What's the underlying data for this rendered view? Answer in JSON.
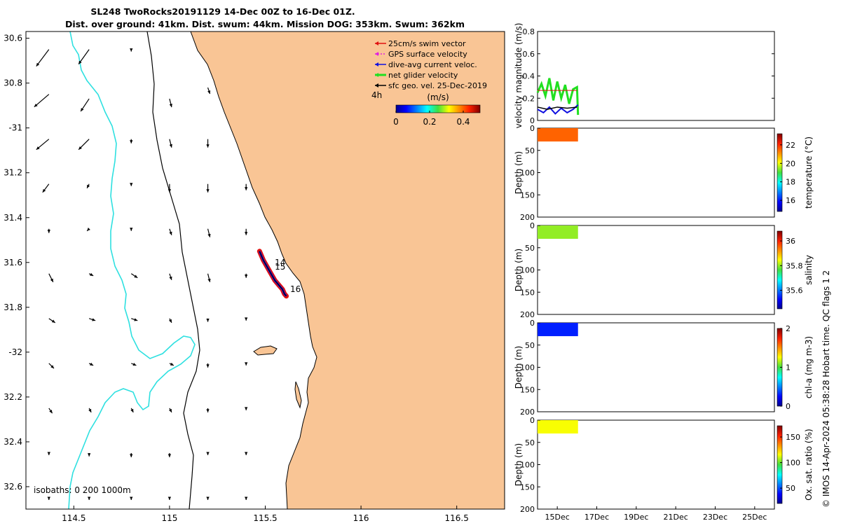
{
  "title_line1": "SL248 TwoRocks20191129 14-Dec 00Z to 16-Dec 01Z.",
  "title_line2": "Dist. over ground: 41km. Dist. swum: 44km. Mission DOG: 353km. Swum: 362km",
  "footer_text": "© IMOS 14-Apr-2024 05:38:28 Hobart time. QC flags 1  2",
  "colors": {
    "land": "#f9c595",
    "isobath_0": "#000000",
    "isobath_200": "#000000",
    "isobath_1000": "#2ee0e0",
    "swim_vector": "#e01010",
    "gps_velocity": "#e020e0",
    "dive_avg": "#1010e0",
    "net_glider": "#20e020",
    "sfc_geo": "#000000"
  },
  "chart_data": [
    {
      "type": "map",
      "xlim": [
        114.25,
        116.75
      ],
      "ylim": [
        -32.7,
        -30.57
      ],
      "x_ticks": [
        114.5,
        115,
        115.5,
        116,
        116.5
      ],
      "x_tick_labels": [
        "114.5",
        "115",
        "115.5",
        "116",
        "116.5"
      ],
      "y_ticks": [
        -30.6,
        -30.8,
        -31,
        -31.2,
        -31.4,
        -31.6,
        -31.8,
        -32,
        -32.2,
        -32.4,
        -32.6
      ],
      "y_tick_labels": [
        "30.6",
        "30.8",
        "-31",
        "31.2",
        "31.4",
        "31.6",
        "31.8",
        "-32",
        "32.2",
        "32.4",
        "32.6"
      ],
      "legend": {
        "placement": "top-right",
        "entries": [
          "25cm/s swim vector",
          "GPS surface velocity",
          "dive-avg current veloc.",
          "net glider velocity",
          "sfc geo. vel. 25-Dec-2019"
        ]
      },
      "colorbar": {
        "label": "(m/s)",
        "ticks": [
          0,
          0.2,
          0.4
        ],
        "tick_labels": [
          "0",
          "0.2",
          "0.4"
        ],
        "range": [
          0,
          0.5
        ]
      },
      "time_label": "4h",
      "isobath_label": "isobaths: 0  200  1000m",
      "track": {
        "lon": [
          115.47,
          115.49,
          115.51,
          115.53,
          115.55,
          115.57,
          115.59,
          115.6,
          115.61
        ],
        "lat": [
          -31.55,
          -31.59,
          -31.62,
          -31.65,
          -31.68,
          -31.7,
          -31.72,
          -31.74,
          -31.75
        ]
      },
      "track_labels": [
        {
          "text": "14",
          "lon": 115.55,
          "lat": -31.6
        },
        {
          "text": "15",
          "lon": 115.55,
          "lat": -31.62
        },
        {
          "text": "16",
          "lon": 115.63,
          "lat": -31.72
        }
      ],
      "current_vectors": [
        {
          "lon": 114.37,
          "lat": -30.65,
          "u": -0.3,
          "v": -0.4
        },
        {
          "lon": 114.58,
          "lat": -30.65,
          "u": -0.25,
          "v": -0.35
        },
        {
          "lon": 114.37,
          "lat": -30.85,
          "u": -0.35,
          "v": -0.3
        },
        {
          "lon": 114.58,
          "lat": -30.87,
          "u": -0.2,
          "v": -0.3
        },
        {
          "lon": 114.37,
          "lat": -31.05,
          "u": -0.3,
          "v": -0.25
        },
        {
          "lon": 114.58,
          "lat": -31.05,
          "u": -0.25,
          "v": -0.25
        },
        {
          "lon": 114.37,
          "lat": -31.25,
          "u": -0.15,
          "v": -0.2
        },
        {
          "lon": 114.58,
          "lat": -31.25,
          "u": -0.05,
          "v": -0.1
        },
        {
          "lon": 114.37,
          "lat": -31.45,
          "u": 0.0,
          "v": -0.1
        },
        {
          "lon": 114.58,
          "lat": -31.45,
          "u": -0.05,
          "v": -0.05
        },
        {
          "lon": 114.37,
          "lat": -31.65,
          "u": 0.1,
          "v": -0.2
        },
        {
          "lon": 114.58,
          "lat": -31.65,
          "u": 0.1,
          "v": -0.05
        },
        {
          "lon": 114.37,
          "lat": -31.85,
          "u": 0.15,
          "v": -0.1
        },
        {
          "lon": 114.58,
          "lat": -31.85,
          "u": 0.15,
          "v": -0.05
        },
        {
          "lon": 114.37,
          "lat": -32.05,
          "u": 0.12,
          "v": -0.12
        },
        {
          "lon": 114.58,
          "lat": -32.05,
          "u": 0.1,
          "v": -0.05
        },
        {
          "lon": 114.37,
          "lat": -32.25,
          "u": 0.08,
          "v": -0.12
        },
        {
          "lon": 114.58,
          "lat": -32.25,
          "u": 0.05,
          "v": -0.1
        },
        {
          "lon": 114.37,
          "lat": -32.45,
          "u": 0.0,
          "v": -0.05
        },
        {
          "lon": 114.58,
          "lat": -32.45,
          "u": 0.0,
          "v": -0.08
        },
        {
          "lon": 114.37,
          "lat": -32.65,
          "u": 0.0,
          "v": -0.05
        },
        {
          "lon": 114.58,
          "lat": -32.65,
          "u": 0.0,
          "v": -0.05
        },
        {
          "lon": 114.8,
          "lat": -30.65,
          "u": 0.0,
          "v": -0.05
        },
        {
          "lon": 115.0,
          "lat": -30.87,
          "u": 0.05,
          "v": -0.2
        },
        {
          "lon": 114.8,
          "lat": -31.05,
          "u": 0.0,
          "v": -0.1
        },
        {
          "lon": 115.0,
          "lat": -31.05,
          "u": 0.05,
          "v": -0.2
        },
        {
          "lon": 114.8,
          "lat": -31.25,
          "u": 0.0,
          "v": -0.05
        },
        {
          "lon": 115.0,
          "lat": -31.25,
          "u": 0.0,
          "v": -0.2
        },
        {
          "lon": 114.8,
          "lat": -31.45,
          "u": 0.0,
          "v": -0.05
        },
        {
          "lon": 115.0,
          "lat": -31.45,
          "u": 0.05,
          "v": -0.15
        },
        {
          "lon": 114.8,
          "lat": -31.65,
          "u": 0.15,
          "v": -0.1
        },
        {
          "lon": 115.0,
          "lat": -31.65,
          "u": 0.05,
          "v": -0.15
        },
        {
          "lon": 114.8,
          "lat": -31.85,
          "u": 0.15,
          "v": -0.05
        },
        {
          "lon": 115.0,
          "lat": -31.85,
          "u": 0.05,
          "v": -0.1
        },
        {
          "lon": 114.8,
          "lat": -32.05,
          "u": 0.12,
          "v": -0.05
        },
        {
          "lon": 115.0,
          "lat": -32.05,
          "u": 0.1,
          "v": -0.05
        },
        {
          "lon": 114.8,
          "lat": -32.25,
          "u": 0.05,
          "v": -0.1
        },
        {
          "lon": 115.0,
          "lat": -32.25,
          "u": 0.05,
          "v": -0.1
        },
        {
          "lon": 114.8,
          "lat": -32.45,
          "u": 0.0,
          "v": -0.1
        },
        {
          "lon": 115.0,
          "lat": -32.45,
          "u": 0.0,
          "v": -0.1
        },
        {
          "lon": 114.8,
          "lat": -32.65,
          "u": 0.0,
          "v": -0.05
        },
        {
          "lon": 115.0,
          "lat": -32.65,
          "u": 0.0,
          "v": -0.05
        },
        {
          "lon": 115.2,
          "lat": -30.82,
          "u": 0.05,
          "v": -0.15
        },
        {
          "lon": 115.2,
          "lat": -31.05,
          "u": 0.0,
          "v": -0.2
        },
        {
          "lon": 115.2,
          "lat": -31.25,
          "u": 0.0,
          "v": -0.2
        },
        {
          "lon": 115.2,
          "lat": -31.45,
          "u": 0.05,
          "v": -0.2
        },
        {
          "lon": 115.2,
          "lat": -31.65,
          "u": 0.05,
          "v": -0.2
        },
        {
          "lon": 115.2,
          "lat": -31.85,
          "u": 0.0,
          "v": -0.08
        },
        {
          "lon": 115.2,
          "lat": -32.05,
          "u": 0.0,
          "v": -0.1
        },
        {
          "lon": 115.2,
          "lat": -32.25,
          "u": 0.0,
          "v": -0.1
        },
        {
          "lon": 115.2,
          "lat": -32.45,
          "u": 0.0,
          "v": -0.05
        },
        {
          "lon": 115.2,
          "lat": -32.65,
          "u": 0.0,
          "v": -0.05
        },
        {
          "lon": 115.4,
          "lat": -31.25,
          "u": 0.0,
          "v": -0.15
        },
        {
          "lon": 115.4,
          "lat": -31.45,
          "u": 0.0,
          "v": -0.15
        },
        {
          "lon": 115.4,
          "lat": -31.65,
          "u": 0.0,
          "v": -0.1
        },
        {
          "lon": 115.4,
          "lat": -31.85,
          "u": 0.0,
          "v": -0.05
        },
        {
          "lon": 115.4,
          "lat": -32.05,
          "u": 0.0,
          "v": -0.05
        },
        {
          "lon": 115.4,
          "lat": -32.25,
          "u": 0.0,
          "v": -0.05
        },
        {
          "lon": 115.4,
          "lat": -32.45,
          "u": 0.0,
          "v": -0.05
        },
        {
          "lon": 115.4,
          "lat": -32.65,
          "u": 0.0,
          "v": -0.05
        }
      ]
    },
    {
      "type": "line",
      "ylabel": "velocity magnitude (m/s)",
      "ylim": [
        0,
        0.8
      ],
      "y_ticks": [
        0,
        0.2,
        0.4,
        0.6,
        0.8
      ],
      "series": [
        {
          "x": [
            14.0,
            14.2,
            14.4,
            14.6,
            14.8,
            15.0,
            15.2,
            15.4,
            15.6,
            15.8,
            16.0,
            16.05
          ],
          "values": [
            0.25,
            0.33,
            0.22,
            0.38,
            0.18,
            0.35,
            0.2,
            0.32,
            0.15,
            0.28,
            0.3,
            0.05
          ]
        },
        {
          "x": [
            14.0,
            14.3,
            14.6,
            14.9,
            15.2,
            15.5,
            15.8,
            16.05
          ],
          "values": [
            0.1,
            0.07,
            0.12,
            0.06,
            0.11,
            0.07,
            0.1,
            0.14
          ]
        },
        {
          "x": [
            14.0,
            14.5,
            15.0,
            15.5,
            16.0
          ],
          "values": [
            0.12,
            0.1,
            0.12,
            0.11,
            0.12
          ]
        },
        {
          "x": [
            14.0,
            15.0,
            16.0
          ],
          "values": [
            0.27,
            0.27,
            0.27
          ]
        }
      ]
    },
    {
      "type": "heatmap",
      "ylabel": "Depth (m)",
      "ylim": [
        200,
        0
      ],
      "y_ticks": [
        0,
        50,
        100,
        150,
        200
      ],
      "colorbar": {
        "label": "temperature (°C)",
        "ticks": [
          16,
          18,
          20,
          22
        ],
        "range": [
          14.8,
          23.2
        ]
      },
      "x_range": [
        14.0,
        16.05
      ],
      "depth_range": [
        0,
        30
      ],
      "value": 21.5
    },
    {
      "type": "heatmap",
      "ylabel": "Depth (m)",
      "ylim": [
        200,
        0
      ],
      "y_ticks": [
        0,
        50,
        100,
        150,
        200
      ],
      "colorbar": {
        "label": "salinity",
        "ticks": [
          35.6,
          35.8,
          36
        ],
        "tick_labels": [
          "35.6",
          "35.8",
          "36"
        ],
        "range": [
          35.45,
          36.08
        ]
      },
      "x_range": [
        14.0,
        16.05
      ],
      "depth_range": [
        0,
        30
      ],
      "value": 35.8
    },
    {
      "type": "heatmap",
      "ylabel": "Depth (m)",
      "ylim": [
        200,
        0
      ],
      "y_ticks": [
        0,
        50,
        100,
        150,
        200
      ],
      "colorbar": {
        "label": "chl-a (mg m-3)",
        "ticks": [
          0,
          1,
          2
        ],
        "range": [
          0,
          2
        ]
      },
      "x_range": [
        14.0,
        16.05
      ],
      "depth_range": [
        0,
        30
      ],
      "value": 0.3
    },
    {
      "type": "heatmap",
      "ylabel": "Depth (m)",
      "ylim": [
        200,
        0
      ],
      "y_ticks": [
        0,
        50,
        100,
        150,
        200
      ],
      "x_ticks": [
        15,
        17,
        19,
        21,
        23,
        25
      ],
      "x_tick_labels": [
        "15Dec",
        "17Dec",
        "19Dec",
        "21Dec",
        "23Dec",
        "25Dec"
      ],
      "xlim": [
        14.0,
        26.0
      ],
      "colorbar": {
        "label": "Ox. sat. ratio (%)",
        "ticks": [
          50,
          100,
          150
        ],
        "range": [
          20,
          172
        ]
      },
      "x_range": [
        14.0,
        16.05
      ],
      "depth_range": [
        0,
        30
      ],
      "value": 115
    }
  ]
}
